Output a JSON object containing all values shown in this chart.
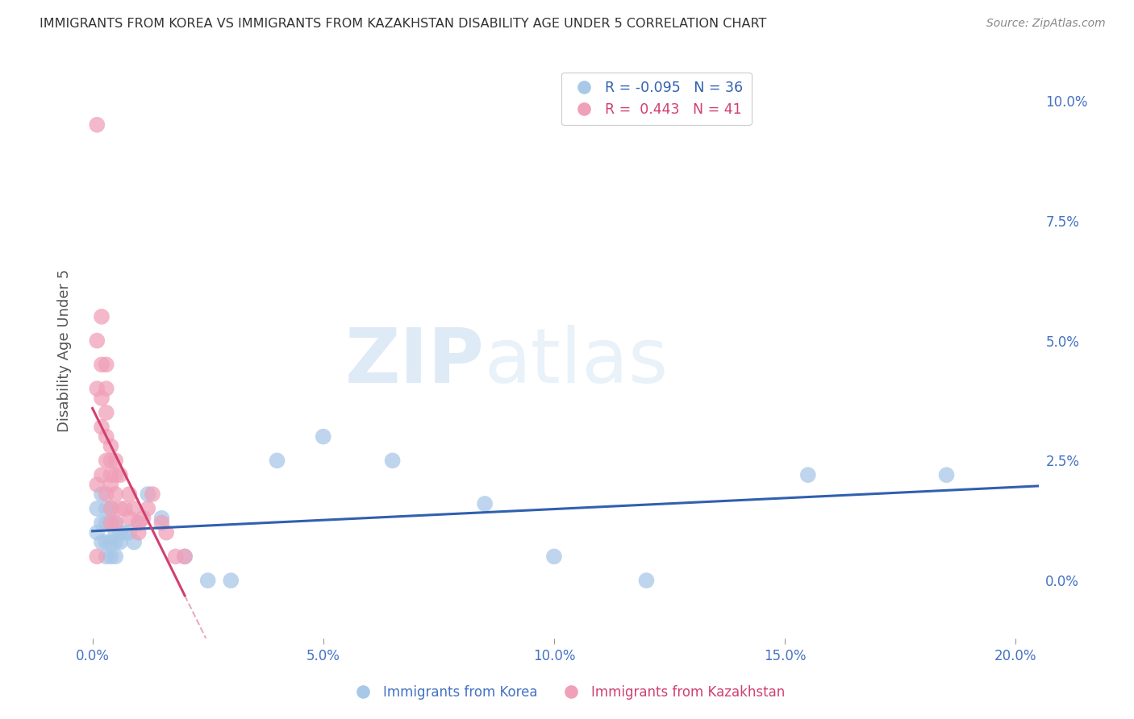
{
  "title": "IMMIGRANTS FROM KOREA VS IMMIGRANTS FROM KAZAKHSTAN DISABILITY AGE UNDER 5 CORRELATION CHART",
  "source": "Source: ZipAtlas.com",
  "ylabel": "Disability Age Under 5",
  "xlabel_ticks": [
    "0.0%",
    "5.0%",
    "10.0%",
    "15.0%",
    "20.0%"
  ],
  "xlabel_vals": [
    0.0,
    0.05,
    0.1,
    0.15,
    0.2
  ],
  "ylabel_ticks": [
    "0.0%",
    "2.5%",
    "5.0%",
    "7.5%",
    "10.0%"
  ],
  "ylabel_vals": [
    0.0,
    0.025,
    0.05,
    0.075,
    0.1
  ],
  "xlim": [
    -0.002,
    0.205
  ],
  "ylim": [
    -0.012,
    0.108
  ],
  "korea_R": -0.095,
  "korea_N": 36,
  "kazakh_R": 0.443,
  "kazakh_N": 41,
  "korea_color": "#a8c8e8",
  "kazakh_color": "#f0a0b8",
  "korea_line_color": "#3060b0",
  "kazakh_line_color": "#d04070",
  "kazakh_dashed_color": "#e8a0b8",
  "background_color": "#ffffff",
  "grid_color": "#d0d0d0",
  "axis_label_color": "#4472c4",
  "title_color": "#333333",
  "watermark_zip": "ZIP",
  "watermark_atlas": "atlas",
  "korea_x": [
    0.001,
    0.001,
    0.002,
    0.002,
    0.002,
    0.003,
    0.003,
    0.003,
    0.003,
    0.004,
    0.004,
    0.004,
    0.004,
    0.005,
    0.005,
    0.005,
    0.005,
    0.006,
    0.006,
    0.007,
    0.008,
    0.009,
    0.01,
    0.012,
    0.015,
    0.02,
    0.025,
    0.03,
    0.04,
    0.05,
    0.065,
    0.085,
    0.1,
    0.12,
    0.155,
    0.185
  ],
  "korea_y": [
    0.015,
    0.01,
    0.018,
    0.012,
    0.008,
    0.015,
    0.012,
    0.008,
    0.005,
    0.015,
    0.012,
    0.008,
    0.005,
    0.012,
    0.01,
    0.008,
    0.005,
    0.01,
    0.008,
    0.01,
    0.01,
    0.008,
    0.012,
    0.018,
    0.013,
    0.005,
    0.0,
    0.0,
    0.025,
    0.03,
    0.025,
    0.016,
    0.005,
    0.0,
    0.022,
    0.022
  ],
  "kazakh_x": [
    0.001,
    0.001,
    0.001,
    0.001,
    0.001,
    0.002,
    0.002,
    0.002,
    0.002,
    0.002,
    0.003,
    0.003,
    0.003,
    0.003,
    0.003,
    0.003,
    0.004,
    0.004,
    0.004,
    0.004,
    0.004,
    0.004,
    0.005,
    0.005,
    0.005,
    0.005,
    0.006,
    0.006,
    0.007,
    0.008,
    0.008,
    0.009,
    0.01,
    0.01,
    0.011,
    0.012,
    0.013,
    0.015,
    0.016,
    0.018,
    0.02
  ],
  "kazakh_y": [
    0.095,
    0.05,
    0.04,
    0.02,
    0.005,
    0.055,
    0.045,
    0.038,
    0.032,
    0.022,
    0.045,
    0.04,
    0.035,
    0.03,
    0.025,
    0.018,
    0.028,
    0.025,
    0.022,
    0.02,
    0.015,
    0.012,
    0.025,
    0.022,
    0.018,
    0.012,
    0.022,
    0.015,
    0.015,
    0.018,
    0.013,
    0.015,
    0.012,
    0.01,
    0.013,
    0.015,
    0.018,
    0.012,
    0.01,
    0.005,
    0.005
  ]
}
